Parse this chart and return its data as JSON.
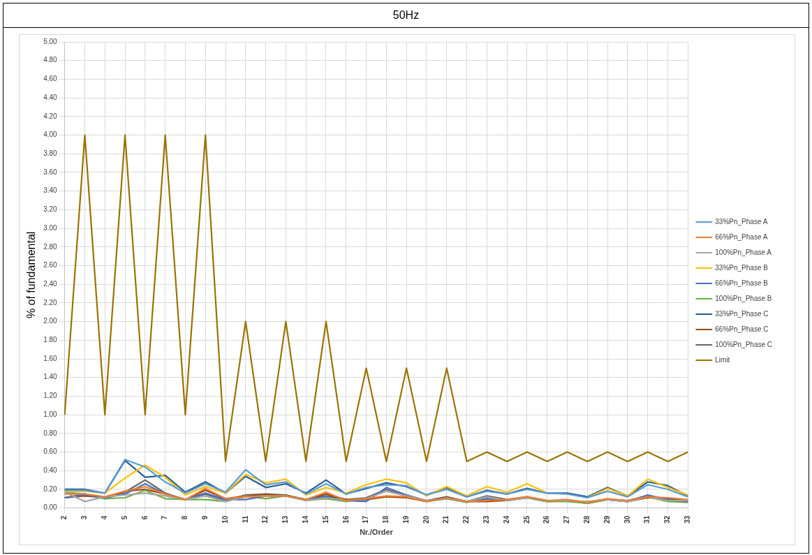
{
  "chart_data": {
    "type": "line",
    "title": "50Hz",
    "xlabel": "Nr./Order",
    "ylabel": "% of fundamental",
    "categories": [
      "2",
      "3",
      "4",
      "5",
      "6",
      "7",
      "8",
      "9",
      "10",
      "11",
      "12",
      "13",
      "14",
      "15",
      "16",
      "17",
      "18",
      "19",
      "20",
      "21",
      "22",
      "23",
      "24",
      "25",
      "26",
      "27",
      "28",
      "29",
      "30",
      "31",
      "32",
      "33"
    ],
    "ylim": [
      0,
      5
    ],
    "yticks": [
      {
        "value": 0,
        "label": "0.00"
      },
      {
        "value": 0.2,
        "label": "0.20"
      },
      {
        "value": 0.4,
        "label": "0.40"
      },
      {
        "value": 0.6,
        "label": "0.60"
      },
      {
        "value": 0.8,
        "label": "0.80"
      },
      {
        "value": 1,
        "label": "1.00"
      },
      {
        "value": 1.2,
        "label": "1.20"
      },
      {
        "value": 1.4,
        "label": "1.40"
      },
      {
        "value": 1.6,
        "label": "1.60"
      },
      {
        "value": 1.8,
        "label": "1.80"
      },
      {
        "value": 2,
        "label": "2.00"
      },
      {
        "value": 2.2,
        "label": "2.20"
      },
      {
        "value": 2.4,
        "label": "2.40"
      },
      {
        "value": 2.6,
        "label": "2.60"
      },
      {
        "value": 2.8,
        "label": "2.80"
      },
      {
        "value": 3,
        "label": "3.00"
      },
      {
        "value": 3.2,
        "label": "3.20"
      },
      {
        "value": 3.4,
        "label": "3.40"
      },
      {
        "value": 3.6,
        "label": "3.60"
      },
      {
        "value": 3.8,
        "label": "3.80"
      },
      {
        "value": 4,
        "label": "4.00"
      },
      {
        "value": 4.2,
        "label": "4.20"
      },
      {
        "value": 4.4,
        "label": "4.40"
      },
      {
        "value": 4.6,
        "label": "4.60"
      },
      {
        "value": 4.8,
        "label": "4.80"
      },
      {
        "value": 5,
        "label": "5.00"
      }
    ],
    "grid": true,
    "legend": "right",
    "marker": "none",
    "line_style": "solid",
    "series": [
      {
        "name": "33%Pn_Phase A",
        "color": "#5b9bd5",
        "values": [
          0.19,
          0.19,
          0.16,
          0.52,
          0.44,
          0.28,
          0.16,
          0.26,
          0.17,
          0.41,
          0.25,
          0.28,
          0.15,
          0.26,
          0.15,
          0.22,
          0.25,
          0.24,
          0.14,
          0.2,
          0.12,
          0.18,
          0.15,
          0.2,
          0.16,
          0.15,
          0.11,
          0.18,
          0.12,
          0.25,
          0.2,
          0.12
        ]
      },
      {
        "name": "66%Pn_Phase A",
        "color": "#ed7d31",
        "values": [
          0.15,
          0.15,
          0.12,
          0.18,
          0.23,
          0.15,
          0.09,
          0.21,
          0.1,
          0.12,
          0.13,
          0.13,
          0.09,
          0.17,
          0.08,
          0.1,
          0.13,
          0.12,
          0.07,
          0.11,
          0.07,
          0.08,
          0.09,
          0.12,
          0.08,
          0.09,
          0.06,
          0.1,
          0.08,
          0.12,
          0.11,
          0.09
        ]
      },
      {
        "name": "100%Pn_Phase A",
        "color": "#a5a5a5",
        "values": [
          0.17,
          0.07,
          0.12,
          0.14,
          0.16,
          0.13,
          0.09,
          0.13,
          0.07,
          0.12,
          0.13,
          0.13,
          0.08,
          0.11,
          0.08,
          0.1,
          0.18,
          0.13,
          0.08,
          0.1,
          0.07,
          0.12,
          0.08,
          0.11,
          0.08,
          0.08,
          0.07,
          0.09,
          0.07,
          0.12,
          0.08,
          0.08
        ]
      },
      {
        "name": "33%Pn_Phase B",
        "color": "#ffc000",
        "values": [
          0.18,
          0.18,
          0.16,
          0.32,
          0.46,
          0.33,
          0.14,
          0.23,
          0.16,
          0.36,
          0.27,
          0.31,
          0.14,
          0.22,
          0.16,
          0.25,
          0.31,
          0.27,
          0.13,
          0.23,
          0.13,
          0.23,
          0.17,
          0.26,
          0.16,
          null,
          0.11,
          0.21,
          0.13,
          0.31,
          0.22,
          0.14
        ]
      },
      {
        "name": "66%Pn_Phase B",
        "color": "#4472c4",
        "values": [
          0.11,
          0.14,
          0.11,
          0.15,
          0.26,
          0.15,
          0.09,
          0.16,
          0.09,
          0.09,
          0.13,
          0.13,
          0.09,
          0.12,
          0.08,
          0.07,
          0.22,
          0.14,
          0.08,
          0.1,
          0.07,
          0.1,
          0.08,
          0.11,
          0.08,
          0.08,
          null,
          0.09,
          0.07,
          0.14,
          0.09,
          0.07
        ]
      },
      {
        "name": "100%Pn_Phase B",
        "color": "#70ad47",
        "values": [
          0.17,
          0.15,
          0.1,
          0.11,
          0.19,
          0.1,
          0.09,
          0.09,
          0.07,
          0.13,
          0.1,
          0.13,
          0.08,
          0.1,
          0.07,
          0.1,
          null,
          0.12,
          0.07,
          0.1,
          0.06,
          0.1,
          0.08,
          0.11,
          0.07,
          0.07,
          0.05,
          0.09,
          0.07,
          0.12,
          0.07,
          0.06
        ]
      },
      {
        "name": "33%Pn_Phase C",
        "color": "#255e91",
        "values": [
          0.2,
          0.2,
          0.16,
          0.51,
          0.33,
          0.35,
          0.17,
          0.28,
          0.16,
          0.34,
          0.22,
          0.26,
          0.16,
          0.3,
          0.15,
          0.21,
          0.27,
          0.23,
          0.14,
          0.22,
          0.12,
          0.19,
          0.15,
          0.21,
          0.16,
          0.16,
          0.12,
          0.22,
          0.13,
          0.28,
          0.24,
          0.13
        ]
      },
      {
        "name": "66%Pn_Phase C",
        "color": "#9e480e",
        "values": [
          0.11,
          0.13,
          0.11,
          0.18,
          0.2,
          0.15,
          0.09,
          0.19,
          0.1,
          0.13,
          0.14,
          0.13,
          0.09,
          0.15,
          0.09,
          0.09,
          0.12,
          0.11,
          0.07,
          0.11,
          0.07,
          0.07,
          0.08,
          0.11,
          0.07,
          0.08,
          0.05,
          0.09,
          0.07,
          0.11,
          0.1,
          0.08
        ]
      },
      {
        "name": "100%Pn_Phase C",
        "color": "#636363",
        "values": [
          0.11,
          0.15,
          0.1,
          0.17,
          0.3,
          0.16,
          0.09,
          0.15,
          0.08,
          0.14,
          0.15,
          0.14,
          0.09,
          0.13,
          0.09,
          0.11,
          0.2,
          0.13,
          0.08,
          0.12,
          0.07,
          0.13,
          0.09,
          0.12,
          0.08,
          0.08,
          0.06,
          0.09,
          0.08,
          0.13,
          0.09,
          0.08
        ]
      },
      {
        "name": "Limit",
        "color": "#997300",
        "values": [
          1,
          4,
          1,
          4,
          1,
          4,
          1,
          4,
          0.5,
          2,
          0.5,
          2,
          0.5,
          2,
          0.5,
          1.5,
          0.5,
          1.5,
          0.5,
          1.5,
          0.5,
          0.6,
          0.5,
          0.6,
          0.5,
          0.6,
          0.5,
          0.6,
          0.5,
          0.6,
          0.5,
          0.6
        ]
      }
    ]
  }
}
